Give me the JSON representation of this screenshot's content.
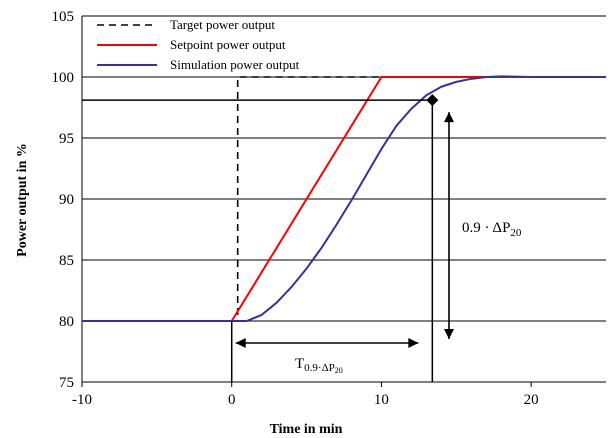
{
  "chart_data": {
    "type": "line",
    "xlabel": "Time in min",
    "ylabel": "Power output in %",
    "xlim": [
      -10,
      25
    ],
    "ylim": [
      75,
      105
    ],
    "x_ticks": [
      -10,
      0,
      10,
      20
    ],
    "y_ticks": [
      75,
      80,
      85,
      90,
      95,
      100,
      105
    ],
    "grid": "horizontal",
    "legend_position": "top-left",
    "series": [
      {
        "name": "Target power output",
        "color": "#000000",
        "dash": "dashed",
        "points": [
          [
            0,
            80
          ],
          [
            0.4,
            80
          ],
          [
            0.4,
            100
          ],
          [
            25,
            100
          ]
        ]
      },
      {
        "name": "Setpoint power output",
        "color": "#ff0000",
        "dash": "solid",
        "points": [
          [
            -10,
            80
          ],
          [
            0,
            80
          ],
          [
            10,
            100
          ],
          [
            25,
            100
          ]
        ]
      },
      {
        "name": "Simulation power output",
        "color": "#3333a0",
        "dash": "solid",
        "points": [
          [
            -10,
            80
          ],
          [
            0,
            80
          ],
          [
            1,
            80
          ],
          [
            2,
            80.5
          ],
          [
            3,
            81.5
          ],
          [
            4,
            82.8
          ],
          [
            5,
            84.3
          ],
          [
            6,
            86
          ],
          [
            7,
            87.9
          ],
          [
            8,
            89.9
          ],
          [
            9,
            92
          ],
          [
            10,
            94.1
          ],
          [
            11,
            96
          ],
          [
            12,
            97.4
          ],
          [
            13,
            98.5
          ],
          [
            14,
            99.2
          ],
          [
            15,
            99.6
          ],
          [
            16,
            99.85
          ],
          [
            17,
            100
          ],
          [
            18,
            100.05
          ],
          [
            20,
            100
          ],
          [
            25,
            100
          ]
        ]
      }
    ],
    "annotations": {
      "marker_point": [
        13.4,
        98.1
      ],
      "rise_label_main": "0.9 · ΔP",
      "rise_label_sub": "20",
      "time_label_main": "T",
      "time_label_sub": "0.9·ΔP",
      "time_label_subsub": "20"
    }
  }
}
